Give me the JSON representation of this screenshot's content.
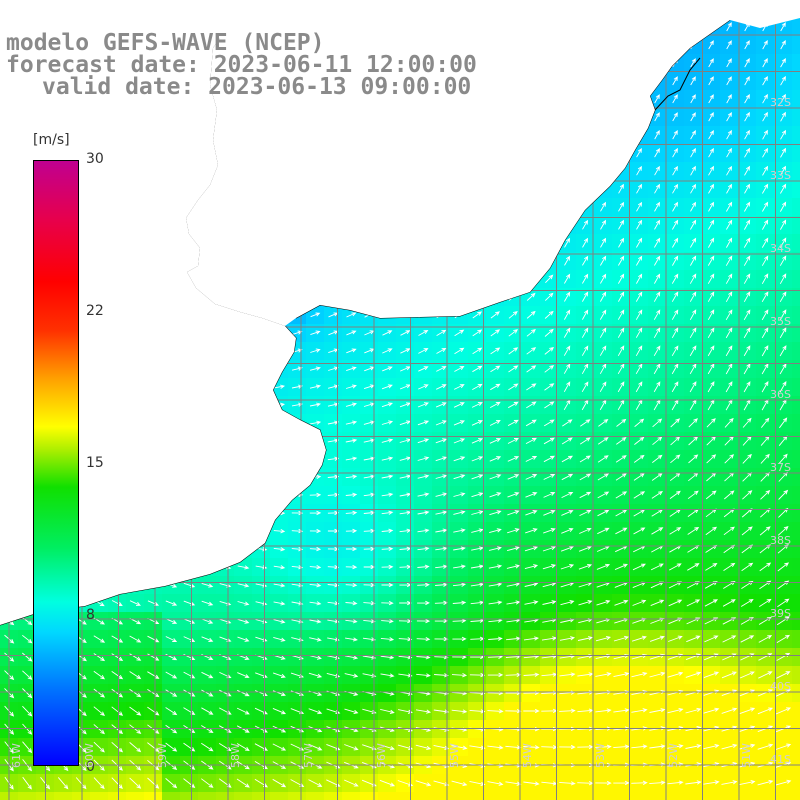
{
  "title": {
    "line1": "modelo GEFS-WAVE (NCEP)",
    "line2": "forecast date: 2023-06-11 12:00:00",
    "line3": "valid date: 2023-06-13 09:00:00"
  },
  "legend": {
    "unit": "[m/s]",
    "ticks": [
      "30",
      "22",
      "15",
      "8",
      "0"
    ],
    "tick_values": [
      30,
      22,
      15,
      8,
      0
    ],
    "range": [
      0,
      30
    ],
    "colors": [
      "#0000ff",
      "#0078ff",
      "#00d8ff",
      "#00ffe0",
      "#00ee60",
      "#10e000",
      "#a8ee00",
      "#ffff00",
      "#ffa000",
      "#ff3000",
      "#ff0000",
      "#e8004a",
      "#c00090"
    ]
  },
  "map": {
    "lat_labels": [
      "32S",
      "33S",
      "34S",
      "35S",
      "36S",
      "37S",
      "38S",
      "39S",
      "40S",
      "41S"
    ],
    "lon_labels": [
      "61W",
      "60W",
      "59W",
      "58W",
      "57W",
      "56W",
      "55W",
      "54W",
      "53W",
      "52W",
      "51W"
    ],
    "field": "wind speed",
    "land_color": "#ffffff",
    "grid_color": "#888888"
  }
}
